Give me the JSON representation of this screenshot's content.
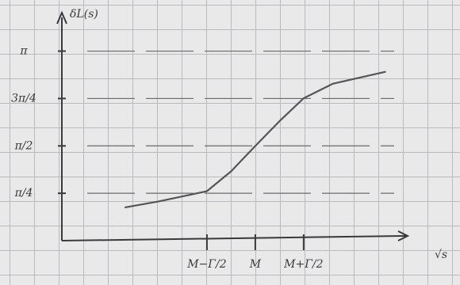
{
  "chart_data": {
    "type": "line",
    "y_label": "δL(s)",
    "x_label": "√s",
    "x": [
      -2.7,
      -2,
      -1,
      -0.5,
      0,
      0.5,
      1,
      1.6,
      2.7
    ],
    "series": [
      {
        "color": "#555555",
        "values": [
          0.55,
          0.65,
          0.82,
          1.15,
          1.57,
          1.98,
          2.36,
          2.6,
          2.8
        ]
      }
    ],
    "xlim": [
      -4,
      3.2
    ],
    "xticks": [
      {
        "value": -1,
        "label": "M−Γ/2"
      },
      {
        "value": 0,
        "label": "M"
      },
      {
        "value": 1,
        "label": "M+Γ/2"
      }
    ],
    "ylim": [
      0,
      3.7
    ],
    "yticks": [
      {
        "value": 0.7854,
        "label": "π/4"
      },
      {
        "value": 1.5708,
        "label": "π/2"
      },
      {
        "value": 2.3562,
        "label": "3π/4"
      },
      {
        "value": 3.1416,
        "label": "π"
      }
    ],
    "grid": true
  }
}
